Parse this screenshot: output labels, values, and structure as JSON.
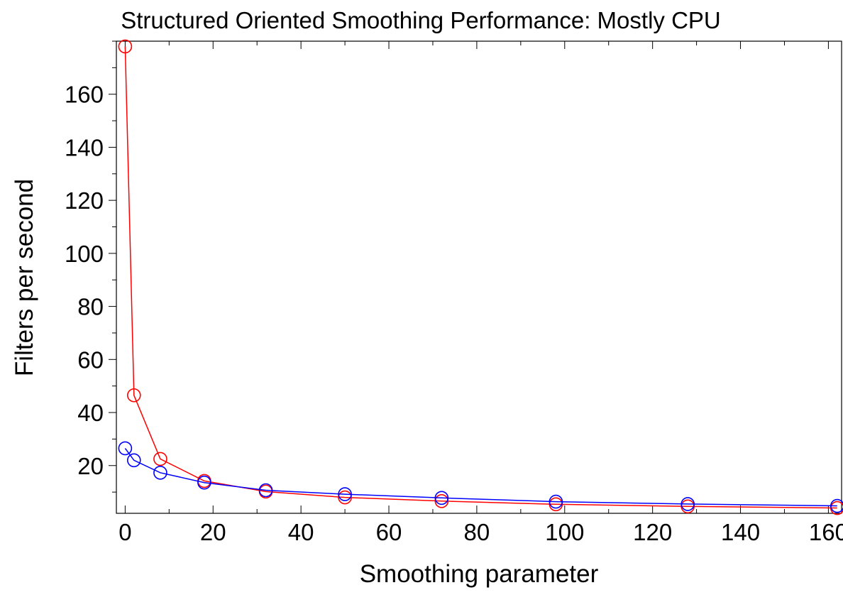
{
  "chart_data": {
    "type": "line",
    "title": "Structured Oriented Smoothing Performance: Mostly CPU",
    "xlabel": "Smoothing parameter",
    "ylabel": "Filters per second",
    "xlim": [
      -2,
      163
    ],
    "ylim": [
      2,
      180
    ],
    "xticks": [
      0,
      20,
      40,
      60,
      80,
      100,
      120,
      140,
      160
    ],
    "yticks": [
      20,
      40,
      60,
      80,
      100,
      120,
      140,
      160
    ],
    "x_minor_step": 10,
    "y_minor_step": 10,
    "grid": false,
    "marker": "open-circle",
    "series": [
      {
        "color": "#ff0000",
        "x": [
          0,
          2,
          8,
          18,
          32,
          50,
          72,
          98,
          128,
          162
        ],
        "y": [
          178,
          46.5,
          22.5,
          14.2,
          10.2,
          8.0,
          6.6,
          5.4,
          4.6,
          4.0
        ]
      },
      {
        "color": "#0000ff",
        "x": [
          0,
          2,
          8,
          18,
          32,
          50,
          72,
          98,
          128,
          162
        ],
        "y": [
          26.5,
          22.0,
          17.3,
          13.6,
          10.7,
          9.2,
          7.8,
          6.4,
          5.5,
          4.8
        ]
      }
    ]
  }
}
